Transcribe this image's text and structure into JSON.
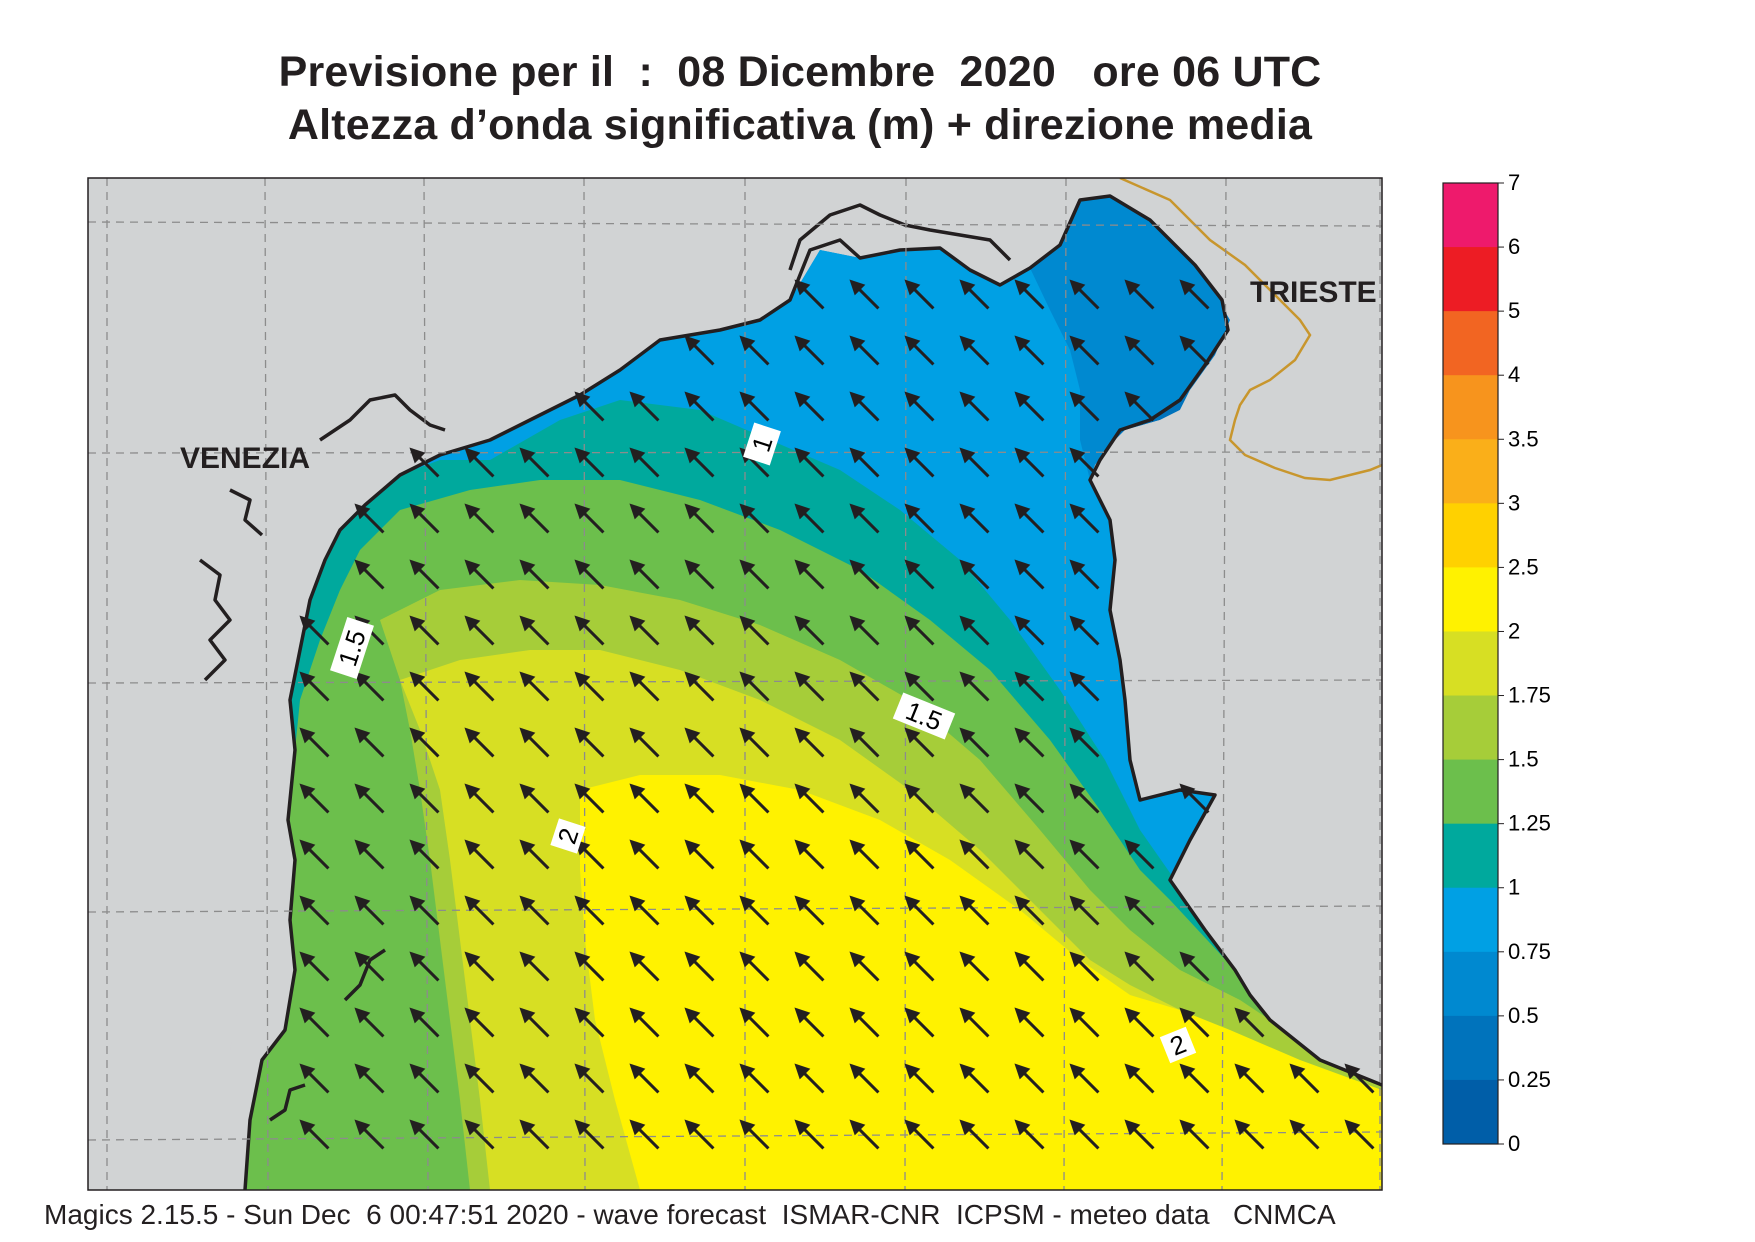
{
  "title": {
    "line1": "Previsione per il  :  08 Dicembre  2020   ore 06 UTC",
    "line2": "Altezza d’onda significativa (m) + direzione media"
  },
  "cities": [
    {
      "name": "VENEZIA"
    },
    {
      "name": "TRIESTE"
    }
  ],
  "contour_labels": [
    "1",
    "1.5",
    "1.5",
    "2",
    "2"
  ],
  "legend": {
    "ticks": [
      "7",
      "6",
      "5",
      "4",
      "3.5",
      "3",
      "2.5",
      "2",
      "1.75",
      "1.5",
      "1.25",
      "1",
      "0.75",
      "0.5",
      "0.25",
      "0"
    ],
    "colors": [
      "#ee1a6c",
      "#ed1c24",
      "#f26522",
      "#f7941d",
      "#faaf19",
      "#ffd100",
      "#fff200",
      "#d7df23",
      "#a6cd39",
      "#6cbf4c",
      "#00a99d",
      "#00a0e4",
      "#0089d0",
      "#0073bc",
      "#005ea8"
    ]
  },
  "colors": {
    "land": "#d1d3d4",
    "coast": "#231f20",
    "border": "#c8962d",
    "grid": "#8c8c8c",
    "arrow": "#231f20"
  },
  "wave_direction": "NW",
  "footer": "Magics 2.15.5 - Sun Dec  6 00:47:51 2020 - wave forecast  ISMAR-CNR  ICPSM - meteo data   CNMCA"
}
